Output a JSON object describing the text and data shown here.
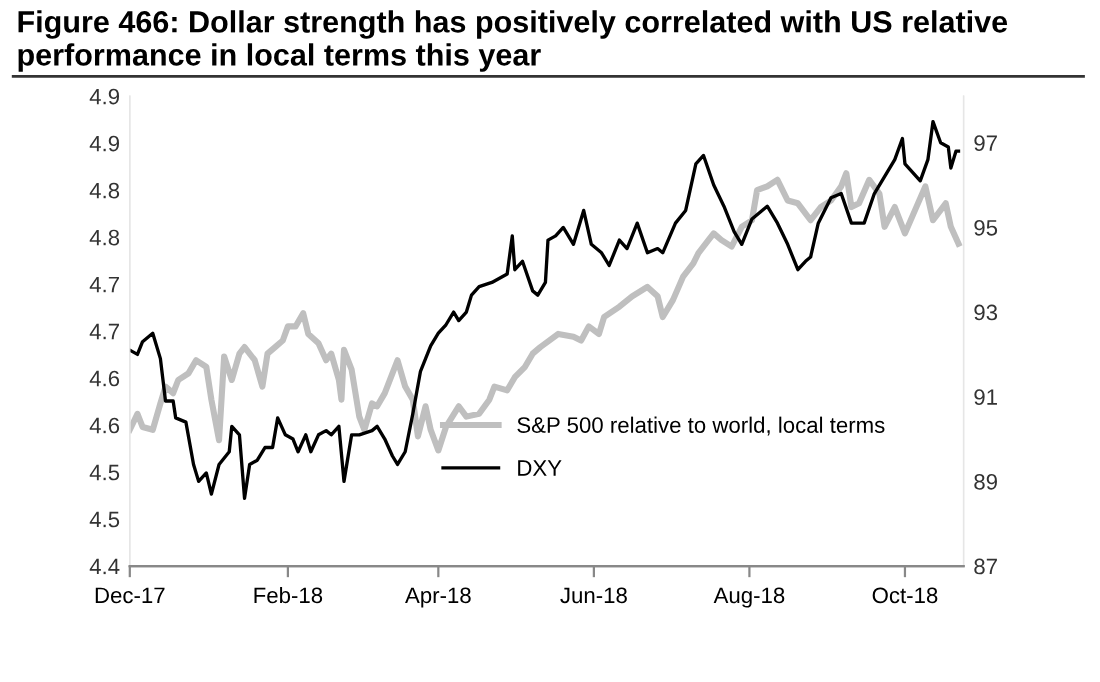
{
  "chart_data": {
    "type": "line",
    "title": "Figure 466: Dollar strength has positively correlated with US relative performance in local terms this year",
    "series": [
      {
        "name": "S&P 500 relative to world, local terms",
        "color": "#bfbfbf",
        "axis": "y",
        "x": [
          "2017-12-01",
          "2017-12-04",
          "2017-12-06",
          "2017-12-10",
          "2017-12-13",
          "2017-12-15",
          "2017-12-18",
          "2017-12-20",
          "2017-12-24",
          "2017-12-27",
          "2017-12-31",
          "2018-01-02",
          "2018-01-05",
          "2018-01-07",
          "2018-01-10",
          "2018-01-13",
          "2018-01-15",
          "2018-01-19",
          "2018-01-22",
          "2018-01-24",
          "2018-01-27",
          "2018-01-30",
          "2018-02-01",
          "2018-02-04",
          "2018-02-07",
          "2018-02-09",
          "2018-02-13",
          "2018-02-16",
          "2018-02-18",
          "2018-02-21",
          "2018-02-22",
          "2018-02-23",
          "2018-02-26",
          "2018-03-01",
          "2018-03-03",
          "2018-03-06",
          "2018-03-08",
          "2018-03-11",
          "2018-03-14",
          "2018-03-16",
          "2018-03-19",
          "2018-03-22",
          "2018-03-24",
          "2018-03-27",
          "2018-03-29",
          "2018-04-01",
          "2018-04-04",
          "2018-04-09",
          "2018-04-12",
          "2018-04-17",
          "2018-04-21",
          "2018-04-23",
          "2018-04-28",
          "2018-05-01",
          "2018-05-05",
          "2018-05-08",
          "2018-05-11",
          "2018-05-18",
          "2018-05-24",
          "2018-05-27",
          "2018-05-30",
          "2018-06-03",
          "2018-06-05",
          "2018-06-11",
          "2018-06-16",
          "2018-06-22",
          "2018-06-26",
          "2018-06-28",
          "2018-07-02",
          "2018-07-06",
          "2018-07-10",
          "2018-07-12",
          "2018-07-16",
          "2018-07-18",
          "2018-07-21",
          "2018-07-25",
          "2018-07-29",
          "2018-08-02",
          "2018-08-04",
          "2018-08-08",
          "2018-08-12",
          "2018-08-16",
          "2018-08-20",
          "2018-08-25",
          "2018-08-29",
          "2018-09-02",
          "2018-09-06",
          "2018-09-08",
          "2018-09-10",
          "2018-09-13",
          "2018-09-17",
          "2018-09-21",
          "2018-09-23",
          "2018-09-27",
          "2018-10-01",
          "2018-10-05",
          "2018-10-09",
          "2018-10-12",
          "2018-10-17",
          "2018-10-19",
          "2018-10-22"
        ],
        "values": [
          4.545,
          4.562,
          4.548,
          4.545,
          4.573,
          4.591,
          4.584,
          4.598,
          4.605,
          4.619,
          4.612,
          4.577,
          4.534,
          4.623,
          4.598,
          4.626,
          4.633,
          4.619,
          4.591,
          4.626,
          4.633,
          4.64,
          4.655,
          4.655,
          4.669,
          4.647,
          4.637,
          4.619,
          4.626,
          4.598,
          4.577,
          4.63,
          4.609,
          4.559,
          4.545,
          4.573,
          4.57,
          4.584,
          4.605,
          4.619,
          4.591,
          4.577,
          4.538,
          4.57,
          4.545,
          4.523,
          4.548,
          4.57,
          4.559,
          4.562,
          4.577,
          4.591,
          4.587,
          4.601,
          4.612,
          4.626,
          4.633,
          4.647,
          4.644,
          4.64,
          4.655,
          4.647,
          4.665,
          4.676,
          4.687,
          4.697,
          4.687,
          4.665,
          4.683,
          4.708,
          4.722,
          4.733,
          4.747,
          4.754,
          4.747,
          4.74,
          4.761,
          4.768,
          4.8,
          4.804,
          4.811,
          4.789,
          4.786,
          4.768,
          4.782,
          4.789,
          4.804,
          4.818,
          4.782,
          4.786,
          4.811,
          4.796,
          4.761,
          4.782,
          4.754,
          4.779,
          4.804,
          4.768,
          4.786,
          4.761,
          4.743
        ]
      },
      {
        "name": "DXY",
        "color": "#000000",
        "axis": "y2",
        "x": [
          "2017-12-01",
          "2017-12-04",
          "2017-12-06",
          "2017-12-10",
          "2017-12-13",
          "2017-12-15",
          "2017-12-18",
          "2017-12-19",
          "2017-12-23",
          "2017-12-26",
          "2017-12-28",
          "2017-12-31",
          "2018-01-02",
          "2018-01-05",
          "2018-01-09",
          "2018-01-10",
          "2018-01-13",
          "2018-01-15",
          "2018-01-17",
          "2018-01-20",
          "2018-01-23",
          "2018-01-26",
          "2018-01-28",
          "2018-01-31",
          "2018-02-03",
          "2018-02-05",
          "2018-02-08",
          "2018-02-10",
          "2018-02-13",
          "2018-02-16",
          "2018-02-18",
          "2018-02-21",
          "2018-02-23",
          "2018-02-26",
          "2018-03-01",
          "2018-03-06",
          "2018-03-08",
          "2018-03-11",
          "2018-03-14",
          "2018-03-16",
          "2018-03-19",
          "2018-03-22",
          "2018-03-25",
          "2018-03-27",
          "2018-03-29",
          "2018-04-01",
          "2018-04-04",
          "2018-04-07",
          "2018-04-09",
          "2018-04-12",
          "2018-04-14",
          "2018-04-17",
          "2018-04-22",
          "2018-04-28",
          "2018-04-30",
          "2018-05-01",
          "2018-05-04",
          "2018-05-08",
          "2018-05-10",
          "2018-05-13",
          "2018-05-14",
          "2018-05-17",
          "2018-05-20",
          "2018-05-24",
          "2018-05-26",
          "2018-05-28",
          "2018-05-31",
          "2018-06-04",
          "2018-06-07",
          "2018-06-11",
          "2018-06-14",
          "2018-06-18",
          "2018-06-22",
          "2018-06-26",
          "2018-06-28",
          "2018-07-03",
          "2018-07-07",
          "2018-07-11",
          "2018-07-14",
          "2018-07-18",
          "2018-07-22",
          "2018-07-26",
          "2018-07-29",
          "2018-08-02",
          "2018-08-06",
          "2018-08-08",
          "2018-08-12",
          "2018-08-16",
          "2018-08-20",
          "2018-08-23",
          "2018-08-25",
          "2018-08-28",
          "2018-09-02",
          "2018-09-06",
          "2018-09-10",
          "2018-09-15",
          "2018-09-19",
          "2018-09-23",
          "2018-09-27",
          "2018-09-30",
          "2018-10-01",
          "2018-10-07",
          "2018-10-10",
          "2018-10-12",
          "2018-10-15",
          "2018-10-18",
          "2018-10-19",
          "2018-10-21",
          "2018-10-22"
        ],
        "values": [
          92.1,
          92.0,
          92.3,
          92.5,
          91.9,
          90.9,
          90.9,
          90.5,
          90.4,
          89.4,
          89.0,
          89.2,
          88.7,
          89.4,
          89.7,
          90.3,
          90.1,
          88.6,
          89.4,
          89.5,
          89.8,
          89.8,
          90.5,
          90.1,
          90.0,
          89.7,
          90.1,
          89.7,
          90.1,
          90.2,
          90.1,
          90.3,
          89.0,
          90.1,
          90.1,
          90.2,
          90.3,
          90.0,
          89.6,
          89.4,
          89.7,
          90.6,
          91.6,
          91.9,
          92.2,
          92.5,
          92.7,
          93.0,
          92.8,
          93.0,
          93.4,
          93.6,
          93.7,
          93.9,
          94.8,
          94.0,
          94.2,
          93.5,
          93.4,
          93.7,
          94.7,
          94.8,
          95.0,
          94.6,
          95.0,
          95.4,
          94.6,
          94.4,
          94.1,
          94.7,
          94.5,
          95.1,
          94.4,
          94.5,
          94.4,
          95.1,
          95.4,
          96.5,
          96.7,
          96.0,
          95.5,
          94.9,
          94.6,
          95.2,
          95.4,
          95.5,
          95.1,
          94.6,
          94.0,
          94.2,
          94.3,
          95.1,
          95.7,
          95.8,
          95.1,
          95.1,
          95.8,
          96.2,
          96.6,
          97.1,
          96.5,
          96.1,
          96.6,
          97.5,
          97.0,
          96.9,
          96.4,
          96.8,
          96.8
        ]
      }
    ],
    "xlim": [
      "2017-12-01",
      "2018-10-24"
    ],
    "xticks": [
      {
        "value": "2017-12-01",
        "label": "Dec-17"
      },
      {
        "value": "2018-02-01",
        "label": "Feb-18"
      },
      {
        "value": "2018-04-01",
        "label": "Apr-18"
      },
      {
        "value": "2018-06-01",
        "label": "Jun-18"
      },
      {
        "value": "2018-08-01",
        "label": "Aug-18"
      },
      {
        "value": "2018-10-01",
        "label": "Oct-18"
      }
    ],
    "ylim": [
      4.4,
      4.9
    ],
    "yticks": [
      4.4,
      {
        "value": 4.45,
        "label": "4.5"
      },
      4.5,
      {
        "value": 4.55,
        "label": "4.6"
      },
      4.6,
      {
        "value": 4.65,
        "label": "4.7"
      },
      4.7,
      {
        "value": 4.75,
        "label": "4.8"
      },
      4.8,
      {
        "value": 4.85,
        "label": "4.9"
      },
      4.9
    ],
    "y2lim": [
      87,
      98.1
    ],
    "y2ticks": [
      87,
      89,
      91,
      93,
      95,
      97
    ],
    "legend": "bottom right",
    "grid": false,
    "line_style": "solid",
    "marker": "none"
  }
}
